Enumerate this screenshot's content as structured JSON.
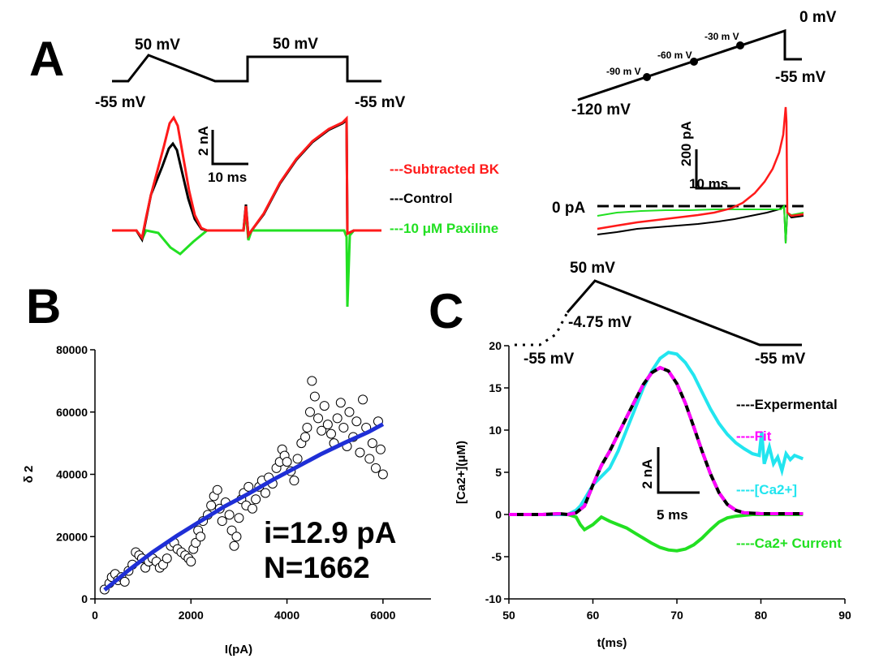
{
  "colors": {
    "subtracted_bk": "#ff1a1a",
    "control": "#000000",
    "paxilline": "#22e022",
    "fit_line": "#1f2fd6",
    "fit": "#ff00ff",
    "ca": "#22e5ef",
    "ca_current": "#22e022"
  },
  "panels": {
    "a_label": "A",
    "b_label": "B",
    "c_label": "C"
  },
  "panel_a": {
    "protocol_labels": {
      "ramp_peak": "50 mV",
      "step_peak": "50 mV",
      "hold_left": "-55 mV",
      "hold_right": "-55 mV"
    },
    "scale_bar": {
      "y": "2 nA",
      "x": "10 ms"
    },
    "legend": {
      "subtracted": "---Subtracted BK",
      "control": "---Control",
      "paxilline": "---10 μM Paxiline"
    }
  },
  "panel_a_right": {
    "protocol_labels": {
      "top": "0 mV",
      "bottom_right": "-55 mV",
      "start": "-120 mV",
      "p90": "-90 m V",
      "p60": "-60 m V",
      "p30": "-30 m V"
    },
    "scale_bar": {
      "y": "200 pA",
      "x": "10 ms"
    },
    "zero_label": "0 pA"
  },
  "panel_c_protocol": {
    "peak": "50 mV",
    "mid": "-4.75 mV",
    "hold_left": "-55 mV",
    "hold_right": "-55 mV"
  },
  "chart_data": [
    {
      "type": "scatter",
      "xlabel": "I(pA)",
      "ylabel": "δ 2",
      "xlim": [
        0,
        7000
      ],
      "ylim": [
        0,
        80000
      ],
      "xticks": [
        "0",
        "2000",
        "4000",
        "6000"
      ],
      "yticks": [
        "0",
        "20000",
        "40000",
        "60000",
        "80000"
      ],
      "annotation": [
        "i=12.9 pA",
        "N=1662"
      ],
      "series": [
        {
          "kind": "points",
          "x": [
            200,
            300,
            350,
            420,
            480,
            550,
            620,
            700,
            780,
            850,
            920,
            980,
            1050,
            1120,
            1200,
            1280,
            1350,
            1420,
            1500,
            1580,
            1650,
            1720,
            1800,
            1880,
            1950,
            2000,
            2050,
            2100,
            2150,
            2200,
            2250,
            2350,
            2420,
            2480,
            2550,
            2600,
            2650,
            2720,
            2800,
            2850,
            2900,
            2950,
            3000,
            3050,
            3100,
            3150,
            3200,
            3280,
            3350,
            3420,
            3480,
            3550,
            3620,
            3700,
            3780,
            3850,
            3900,
            3950,
            4000,
            4080,
            4150,
            4220,
            4300,
            4380,
            4420,
            4480,
            4520,
            4580,
            4650,
            4720,
            4780,
            4850,
            4920,
            4980,
            5050,
            5120,
            5180,
            5250,
            5300,
            5380,
            5450,
            5520,
            5580,
            5650,
            5720,
            5780,
            5850,
            5900,
            5950,
            6000
          ],
          "y": [
            3000,
            5000,
            7000,
            8000,
            6000,
            7000,
            5500,
            9000,
            11000,
            15000,
            14000,
            13000,
            10000,
            12000,
            13000,
            12000,
            10000,
            11000,
            13000,
            17000,
            18000,
            16000,
            15000,
            14000,
            13000,
            12000,
            16000,
            18000,
            22000,
            20000,
            25000,
            27000,
            30000,
            33000,
            35000,
            29000,
            25000,
            31000,
            27000,
            22000,
            17000,
            20000,
            26000,
            32000,
            34000,
            30000,
            36000,
            29000,
            32000,
            36000,
            38000,
            34000,
            39000,
            37000,
            42000,
            44000,
            48000,
            46000,
            44000,
            41000,
            38000,
            45000,
            50000,
            52000,
            55000,
            60000,
            70000,
            65000,
            58000,
            54000,
            62000,
            56000,
            53000,
            50000,
            58000,
            63000,
            55000,
            49000,
            60000,
            52000,
            57000,
            47000,
            64000,
            55000,
            45000,
            50000,
            42000,
            57000,
            48000,
            40000
          ]
        },
        {
          "kind": "fit",
          "x": [
            200,
            700,
            1200,
            1700,
            2200,
            2700,
            3200,
            3700,
            4200,
            4700,
            5200,
            5700,
            6000
          ],
          "y": [
            2900,
            9200,
            15000,
            20200,
            25000,
            29700,
            33800,
            38200,
            42300,
            46400,
            50100,
            53600,
            56100
          ]
        }
      ]
    },
    {
      "type": "line",
      "xlabel": "t(ms)",
      "ylabel": "[Ca2+](μM)",
      "xlim": [
        50,
        90
      ],
      "ylim": [
        -10,
        20
      ],
      "xticks": [
        "50",
        "60",
        "70",
        "80",
        "90"
      ],
      "yticks": [
        "-10",
        "-5",
        "0",
        "5",
        "10",
        "15",
        "20"
      ],
      "scale_bar": {
        "y": "2 nA",
        "x": "5 ms"
      },
      "series": [
        {
          "name": "----Expermental",
          "x": [
            50,
            54,
            56,
            57,
            58,
            59,
            60,
            61,
            62,
            63,
            64,
            65,
            66,
            67,
            68,
            69,
            70,
            71,
            72,
            73,
            74,
            75,
            76,
            77,
            78,
            80,
            82,
            85
          ],
          "y": [
            0,
            0,
            0.1,
            0,
            0.2,
            1,
            3.5,
            5.8,
            7.5,
            9.5,
            11.5,
            13.5,
            15.4,
            16.8,
            17.4,
            17.0,
            15.5,
            13.2,
            10.4,
            7.5,
            4.8,
            2.6,
            1.2,
            0.5,
            0.2,
            0.1,
            0.1,
            0.1
          ]
        },
        {
          "name": "----Fit",
          "x": [
            50,
            54,
            56,
            57,
            58,
            59,
            60,
            61,
            62,
            63,
            64,
            65,
            66,
            67,
            68,
            69,
            70,
            71,
            72,
            73,
            74,
            75,
            76,
            77,
            78,
            80,
            82,
            85
          ],
          "y": [
            0,
            0,
            0.1,
            0,
            0.2,
            1,
            3.5,
            5.8,
            7.5,
            9.5,
            11.5,
            13.5,
            15.4,
            16.8,
            17.4,
            17.0,
            15.5,
            13.2,
            10.4,
            7.5,
            4.8,
            2.6,
            1.2,
            0.5,
            0.2,
            0.1,
            0.1,
            0.1
          ]
        },
        {
          "name": "----[Ca2+]",
          "x": [
            50,
            55,
            57,
            58,
            58.5,
            59,
            60,
            61,
            62,
            63,
            64,
            65,
            66,
            67,
            68,
            69,
            70,
            71,
            72,
            73,
            74,
            75,
            76,
            77,
            78,
            79,
            79.8,
            80.1,
            80.4,
            81,
            81.5,
            82,
            82.5,
            83,
            83.5,
            84,
            85
          ],
          "y": [
            0,
            0,
            0,
            0.5,
            1,
            1.8,
            3.5,
            4.5,
            5.5,
            7.5,
            10,
            12.5,
            15,
            17,
            18.5,
            19.2,
            19.0,
            18.0,
            16.5,
            14.5,
            12.5,
            10.8,
            9.5,
            8.5,
            7.8,
            7.2,
            7.0,
            9.8,
            6.0,
            8.0,
            6.0,
            6.8,
            5.2,
            7.2,
            6.5,
            7.0,
            6.6
          ]
        },
        {
          "name": "----Ca2+ Current",
          "x": [
            50,
            55,
            57,
            58,
            58.5,
            59,
            60,
            61,
            62,
            63,
            64,
            65,
            66,
            67,
            68,
            69,
            70,
            71,
            72,
            73,
            74,
            75,
            76,
            77,
            78,
            79,
            80,
            85
          ],
          "y": [
            0,
            0,
            0,
            -0.3,
            -1.2,
            -1.8,
            -1.2,
            -0.3,
            -0.8,
            -1.2,
            -1.6,
            -2.2,
            -2.8,
            -3.4,
            -3.9,
            -4.2,
            -4.3,
            -4.1,
            -3.6,
            -2.8,
            -1.8,
            -0.9,
            -0.4,
            -0.2,
            -0.1,
            0,
            0,
            0
          ]
        }
      ]
    }
  ]
}
